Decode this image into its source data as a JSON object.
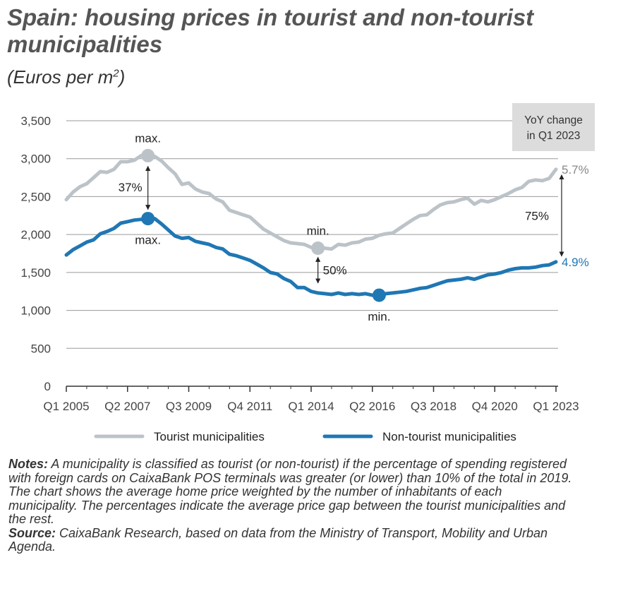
{
  "title": "Spain: housing prices in tourist and non-tourist municipalities",
  "subtitle": "(Euros per m",
  "subtitle_sup": "2",
  "subtitle_end": ")",
  "yoy_box": {
    "line1": "YoY change",
    "line2": "in Q1 2023"
  },
  "chart_data": {
    "type": "line",
    "ylim": [
      0,
      3500
    ],
    "y_ticks": [
      0,
      500,
      1000,
      1500,
      2000,
      2500,
      3000,
      3500
    ],
    "y_tick_labels": [
      "0",
      "500",
      "1,000",
      "1,500",
      "2,000",
      "2,500",
      "3,000",
      "3,500"
    ],
    "x_tick_labels": [
      "Q1 2005",
      "Q2 2007",
      "Q3 2009",
      "Q4 2011",
      "Q1 2014",
      "Q2 2016",
      "Q3 2018",
      "Q4 2020",
      "Q1 2023"
    ],
    "x_range": [
      "Q1 2005",
      "Q1 2023"
    ],
    "grid": "horizontal",
    "legend_position": "bottom",
    "series": [
      {
        "name": "Tourist municipalities",
        "color": "#bcc3c8",
        "yoy_label": "5.7%",
        "points": [
          [
            "Q1 2005",
            2460
          ],
          [
            "Q2 2005",
            2560
          ],
          [
            "Q3 2005",
            2630
          ],
          [
            "Q4 2005",
            2670
          ],
          [
            "Q1 2006",
            2750
          ],
          [
            "Q2 2006",
            2830
          ],
          [
            "Q3 2006",
            2820
          ],
          [
            "Q4 2006",
            2860
          ],
          [
            "Q1 2007",
            2960
          ],
          [
            "Q2 2007",
            2960
          ],
          [
            "Q3 2007",
            2980
          ],
          [
            "Q4 2007",
            3040
          ],
          [
            "Q1 2008",
            3030
          ],
          [
            "Q2 2008",
            3030
          ],
          [
            "Q3 2008",
            2970
          ],
          [
            "Q4 2008",
            2880
          ],
          [
            "Q1 2009",
            2800
          ],
          [
            "Q2 2009",
            2660
          ],
          [
            "Q3 2009",
            2680
          ],
          [
            "Q4 2009",
            2600
          ],
          [
            "Q1 2010",
            2560
          ],
          [
            "Q2 2010",
            2540
          ],
          [
            "Q3 2010",
            2470
          ],
          [
            "Q4 2010",
            2430
          ],
          [
            "Q1 2011",
            2320
          ],
          [
            "Q2 2011",
            2290
          ],
          [
            "Q3 2011",
            2260
          ],
          [
            "Q4 2011",
            2230
          ],
          [
            "Q1 2012",
            2150
          ],
          [
            "Q2 2012",
            2070
          ],
          [
            "Q3 2012",
            2020
          ],
          [
            "Q4 2012",
            1970
          ],
          [
            "Q1 2013",
            1920
          ],
          [
            "Q2 2013",
            1890
          ],
          [
            "Q3 2013",
            1880
          ],
          [
            "Q4 2013",
            1870
          ],
          [
            "Q1 2014",
            1830
          ],
          [
            "Q2 2014",
            1830
          ],
          [
            "Q3 2014",
            1820
          ],
          [
            "Q4 2014",
            1810
          ],
          [
            "Q1 2015",
            1870
          ],
          [
            "Q2 2015",
            1860
          ],
          [
            "Q3 2015",
            1890
          ],
          [
            "Q4 2015",
            1900
          ],
          [
            "Q1 2016",
            1940
          ],
          [
            "Q2 2016",
            1950
          ],
          [
            "Q3 2016",
            1990
          ],
          [
            "Q4 2016",
            2010
          ],
          [
            "Q1 2017",
            2020
          ],
          [
            "Q2 2017",
            2080
          ],
          [
            "Q3 2017",
            2140
          ],
          [
            "Q4 2017",
            2200
          ],
          [
            "Q1 2018",
            2250
          ],
          [
            "Q2 2018",
            2260
          ],
          [
            "Q3 2018",
            2330
          ],
          [
            "Q4 2018",
            2390
          ],
          [
            "Q1 2019",
            2420
          ],
          [
            "Q2 2019",
            2430
          ],
          [
            "Q3 2019",
            2460
          ],
          [
            "Q4 2019",
            2480
          ],
          [
            "Q1 2020",
            2400
          ],
          [
            "Q2 2020",
            2450
          ],
          [
            "Q3 2020",
            2430
          ],
          [
            "Q4 2020",
            2460
          ],
          [
            "Q1 2021",
            2500
          ],
          [
            "Q2 2021",
            2540
          ],
          [
            "Q3 2021",
            2590
          ],
          [
            "Q4 2021",
            2620
          ],
          [
            "Q1 2022",
            2700
          ],
          [
            "Q2 2022",
            2720
          ],
          [
            "Q3 2022",
            2710
          ],
          [
            "Q4 2022",
            2740
          ],
          [
            "Q1 2023",
            2860
          ]
        ]
      },
      {
        "name": "Non-tourist municipalities",
        "color": "#1f77b4",
        "yoy_label": "4.9%",
        "points": [
          [
            "Q1 2005",
            1730
          ],
          [
            "Q2 2005",
            1800
          ],
          [
            "Q3 2005",
            1850
          ],
          [
            "Q4 2005",
            1900
          ],
          [
            "Q1 2006",
            1930
          ],
          [
            "Q2 2006",
            2010
          ],
          [
            "Q3 2006",
            2040
          ],
          [
            "Q4 2006",
            2080
          ],
          [
            "Q1 2007",
            2150
          ],
          [
            "Q2 2007",
            2170
          ],
          [
            "Q3 2007",
            2190
          ],
          [
            "Q4 2007",
            2200
          ],
          [
            "Q1 2008",
            2200
          ],
          [
            "Q2 2008",
            2210
          ],
          [
            "Q3 2008",
            2140
          ],
          [
            "Q4 2008",
            2060
          ],
          [
            "Q1 2009",
            1980
          ],
          [
            "Q2 2009",
            1950
          ],
          [
            "Q3 2009",
            1960
          ],
          [
            "Q4 2009",
            1910
          ],
          [
            "Q1 2010",
            1890
          ],
          [
            "Q2 2010",
            1870
          ],
          [
            "Q3 2010",
            1830
          ],
          [
            "Q4 2010",
            1810
          ],
          [
            "Q1 2011",
            1740
          ],
          [
            "Q2 2011",
            1720
          ],
          [
            "Q3 2011",
            1690
          ],
          [
            "Q4 2011",
            1660
          ],
          [
            "Q1 2012",
            1610
          ],
          [
            "Q2 2012",
            1560
          ],
          [
            "Q3 2012",
            1500
          ],
          [
            "Q4 2012",
            1480
          ],
          [
            "Q1 2013",
            1420
          ],
          [
            "Q2 2013",
            1380
          ],
          [
            "Q3 2013",
            1300
          ],
          [
            "Q4 2013",
            1300
          ],
          [
            "Q1 2014",
            1250
          ],
          [
            "Q2 2014",
            1230
          ],
          [
            "Q3 2014",
            1220
          ],
          [
            "Q4 2014",
            1210
          ],
          [
            "Q1 2015",
            1230
          ],
          [
            "Q2 2015",
            1210
          ],
          [
            "Q3 2015",
            1220
          ],
          [
            "Q4 2015",
            1210
          ],
          [
            "Q1 2016",
            1220
          ],
          [
            "Q2 2016",
            1200
          ],
          [
            "Q3 2016",
            1200
          ],
          [
            "Q4 2016",
            1220
          ],
          [
            "Q1 2017",
            1230
          ],
          [
            "Q2 2017",
            1240
          ],
          [
            "Q3 2017",
            1250
          ],
          [
            "Q4 2017",
            1270
          ],
          [
            "Q1 2018",
            1290
          ],
          [
            "Q2 2018",
            1300
          ],
          [
            "Q3 2018",
            1330
          ],
          [
            "Q4 2018",
            1360
          ],
          [
            "Q1 2019",
            1390
          ],
          [
            "Q2 2019",
            1400
          ],
          [
            "Q3 2019",
            1410
          ],
          [
            "Q4 2019",
            1430
          ],
          [
            "Q1 2020",
            1410
          ],
          [
            "Q2 2020",
            1440
          ],
          [
            "Q3 2020",
            1470
          ],
          [
            "Q4 2020",
            1480
          ],
          [
            "Q1 2021",
            1500
          ],
          [
            "Q2 2021",
            1530
          ],
          [
            "Q3 2021",
            1550
          ],
          [
            "Q4 2021",
            1560
          ],
          [
            "Q1 2022",
            1560
          ],
          [
            "Q2 2022",
            1570
          ],
          [
            "Q3 2022",
            1590
          ],
          [
            "Q4 2022",
            1600
          ],
          [
            "Q1 2023",
            1640
          ]
        ]
      }
    ],
    "annotations": [
      {
        "text": "max.",
        "series": 0,
        "at": "Q1 2008",
        "value": 3040
      },
      {
        "text": "max.",
        "series": 1,
        "at": "Q1 2008",
        "value": 2210
      },
      {
        "text": "37%",
        "between": [
          0,
          1
        ],
        "at": "Q1 2008"
      },
      {
        "text": "min.",
        "series": 0,
        "at": "Q2 2014",
        "value": 1820
      },
      {
        "text": "min.",
        "series": 1,
        "at": "Q3 2016",
        "value": 1200
      },
      {
        "text": "50%",
        "between": [
          0,
          1
        ],
        "at": "Q2 2014"
      },
      {
        "text": "75%",
        "between": [
          0,
          1
        ],
        "at": "Q1 2023"
      }
    ]
  },
  "notes": {
    "notes_label": "Notes:",
    "notes_text": " A municipality is classified as tourist (or non-tourist) if the percentage of spending registered with foreign cards on CaixaBank POS terminals was greater (or lower) than 10% of the total in 2019. The chart shows the average home price weighted by the number of inhabitants of each municipality. The percentages indicate the average price gap between the tourist municipalities and the rest.",
    "source_label": "Source:",
    "source_text": " CaixaBank Research, based on data from the Ministry of Transport, Mobility and Urban Agenda."
  }
}
